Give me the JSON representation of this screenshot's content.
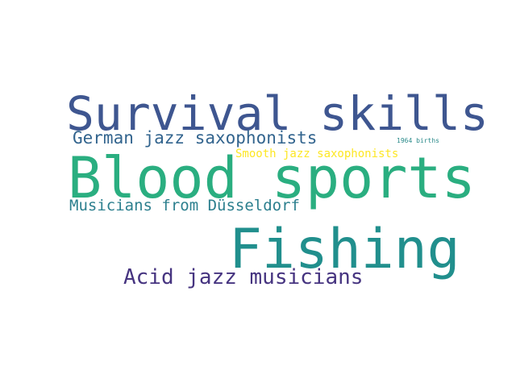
{
  "words": [
    {
      "id": "survival",
      "text": "Survival skills",
      "color": "#3e5690"
    },
    {
      "id": "german",
      "text": "German jazz saxophonists",
      "color": "#32648e"
    },
    {
      "id": "births",
      "text": "1964 births",
      "color": "#2a8a8a"
    },
    {
      "id": "smooth",
      "text": "Smooth jazz saxophonists",
      "color": "#fde725"
    },
    {
      "id": "blood",
      "text": "Blood sports",
      "color": "#2aae80"
    },
    {
      "id": "dussel",
      "text": "Musicians from Düsseldorf",
      "color": "#2c7f8e"
    },
    {
      "id": "fishing",
      "text": "Fishing",
      "color": "#218f8d"
    },
    {
      "id": "acid",
      "text": "Acid jazz musicians",
      "color": "#463480"
    }
  ]
}
